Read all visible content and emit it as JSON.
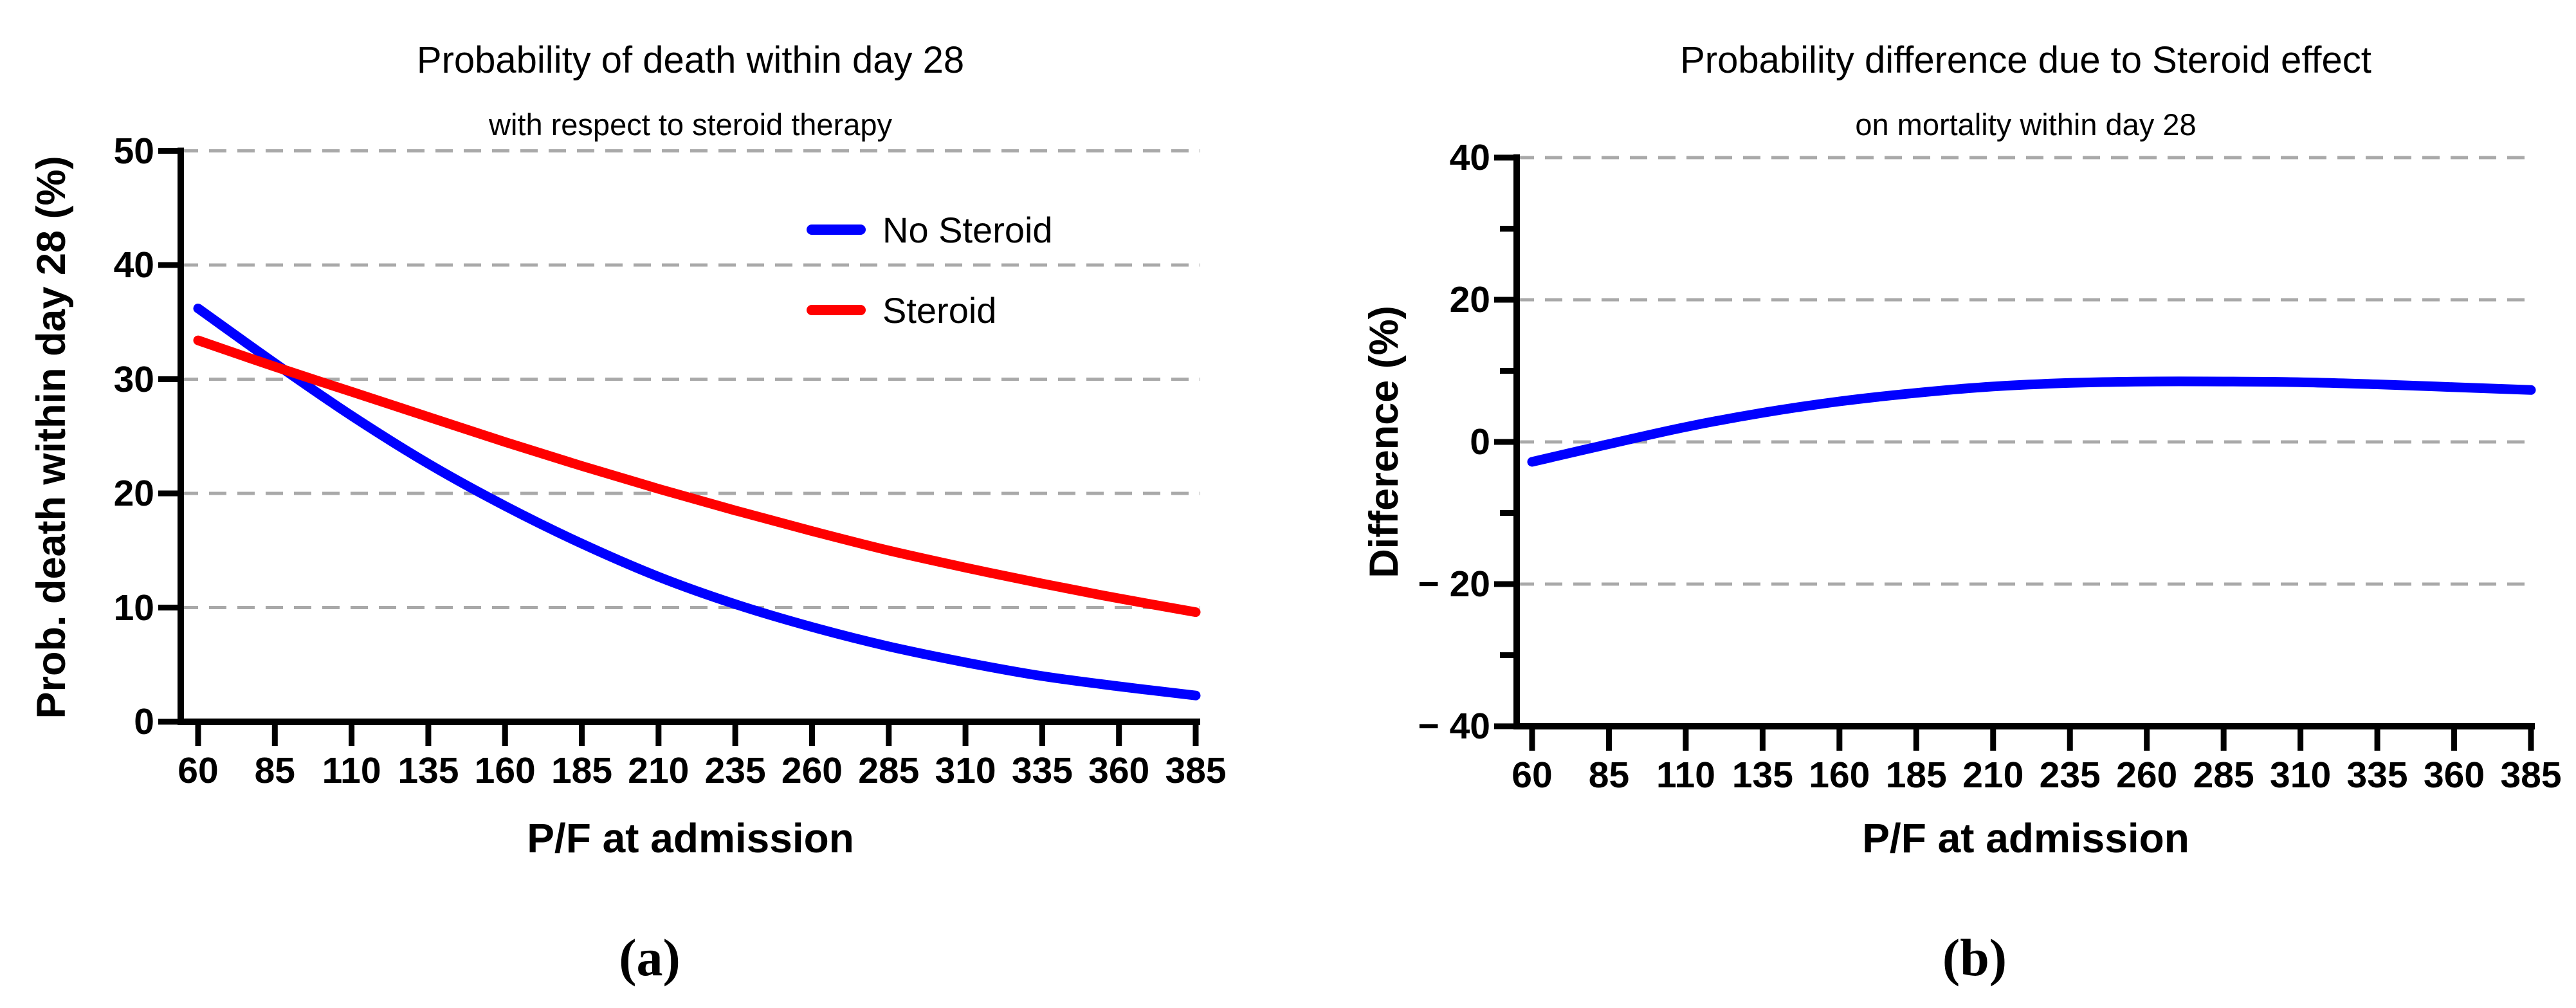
{
  "figure": {
    "background": "#ffffff"
  },
  "colors": {
    "no_steroid": "#0000FF",
    "steroid": "#FF0000",
    "difference": "#0000FF",
    "grid": "#A9A9A9",
    "axis": "#000000",
    "text": "#000000"
  },
  "panels": [
    {
      "panel_label": "(a)",
      "title": "Probability of death within day 28",
      "subtitle": "with respect to steroid therapy",
      "xlabel": "P/F at admission",
      "ylabel": "Prob. death within day 28 (%)",
      "y_tick_labels": [
        "0",
        "10",
        "20",
        "30",
        "40",
        "50"
      ],
      "x_tick_labels": [
        "60",
        "85",
        "110",
        "135",
        "160",
        "185",
        "210",
        "235",
        "260",
        "285",
        "310",
        "335",
        "360",
        "385"
      ],
      "legend": [
        {
          "label": "No Steroid",
          "color": "#0000FF"
        },
        {
          "label": "Steroid",
          "color": "#FF0000"
        }
      ]
    },
    {
      "panel_label": "(b)",
      "title": "Probability difference due to Steroid effect",
      "subtitle": "on mortality within day 28",
      "xlabel": "P/F at admission",
      "ylabel": "Difference (%)",
      "y_tick_labels": [
        "− 40",
        "− 20",
        "0",
        "20",
        "40"
      ],
      "x_tick_labels": [
        "60",
        "85",
        "110",
        "135",
        "160",
        "185",
        "210",
        "235",
        "260",
        "285",
        "310",
        "335",
        "360",
        "385"
      ],
      "legend": []
    }
  ],
  "chart_data": [
    {
      "type": "line",
      "title": "Probability of death within day 28",
      "subtitle": "with respect to steroid therapy",
      "xlabel": "P/F at admission",
      "ylabel": "Prob. death within day 28 (%)",
      "categories": [
        60,
        85,
        110,
        135,
        160,
        185,
        210,
        235,
        260,
        285,
        310,
        335,
        360,
        385
      ],
      "ylim": [
        0,
        50
      ],
      "y_major_ticks": [
        0,
        10,
        20,
        30,
        40,
        50
      ],
      "grid": "dashed horizontal at 10,20,30,40,50",
      "legend_position": "upper right inside plot",
      "series": [
        {
          "name": "No Steroid",
          "color": "#0000FF",
          "values": [
            36.2,
            31.4,
            26.8,
            22.6,
            18.9,
            15.6,
            12.7,
            10.3,
            8.3,
            6.6,
            5.2,
            4.0,
            3.1,
            2.3
          ]
        },
        {
          "name": "Steroid",
          "color": "#FF0000",
          "values": [
            33.4,
            31.1,
            28.9,
            26.7,
            24.5,
            22.4,
            20.4,
            18.5,
            16.7,
            15.0,
            13.5,
            12.1,
            10.8,
            9.6
          ]
        }
      ]
    },
    {
      "type": "line",
      "title": "Probability difference due to Steroid effect",
      "subtitle": "on mortality within day 28",
      "xlabel": "P/F at admission",
      "ylabel": "Difference (%)",
      "categories": [
        60,
        85,
        110,
        135,
        160,
        185,
        210,
        235,
        260,
        285,
        310,
        335,
        360,
        385
      ],
      "ylim": [
        -40,
        40
      ],
      "y_major_ticks": [
        -40,
        -20,
        0,
        20,
        40
      ],
      "y_minor_ticks": [
        -30,
        -10,
        10,
        30
      ],
      "grid": "dashed horizontal at -20,0,20,40",
      "legend_position": "none",
      "series": [
        {
          "name": "Difference",
          "color": "#0000FF",
          "values": [
            -2.8,
            -0.3,
            2.1,
            4.1,
            5.7,
            6.9,
            7.8,
            8.3,
            8.5,
            8.5,
            8.4,
            8.1,
            7.7,
            7.3
          ]
        }
      ]
    }
  ]
}
